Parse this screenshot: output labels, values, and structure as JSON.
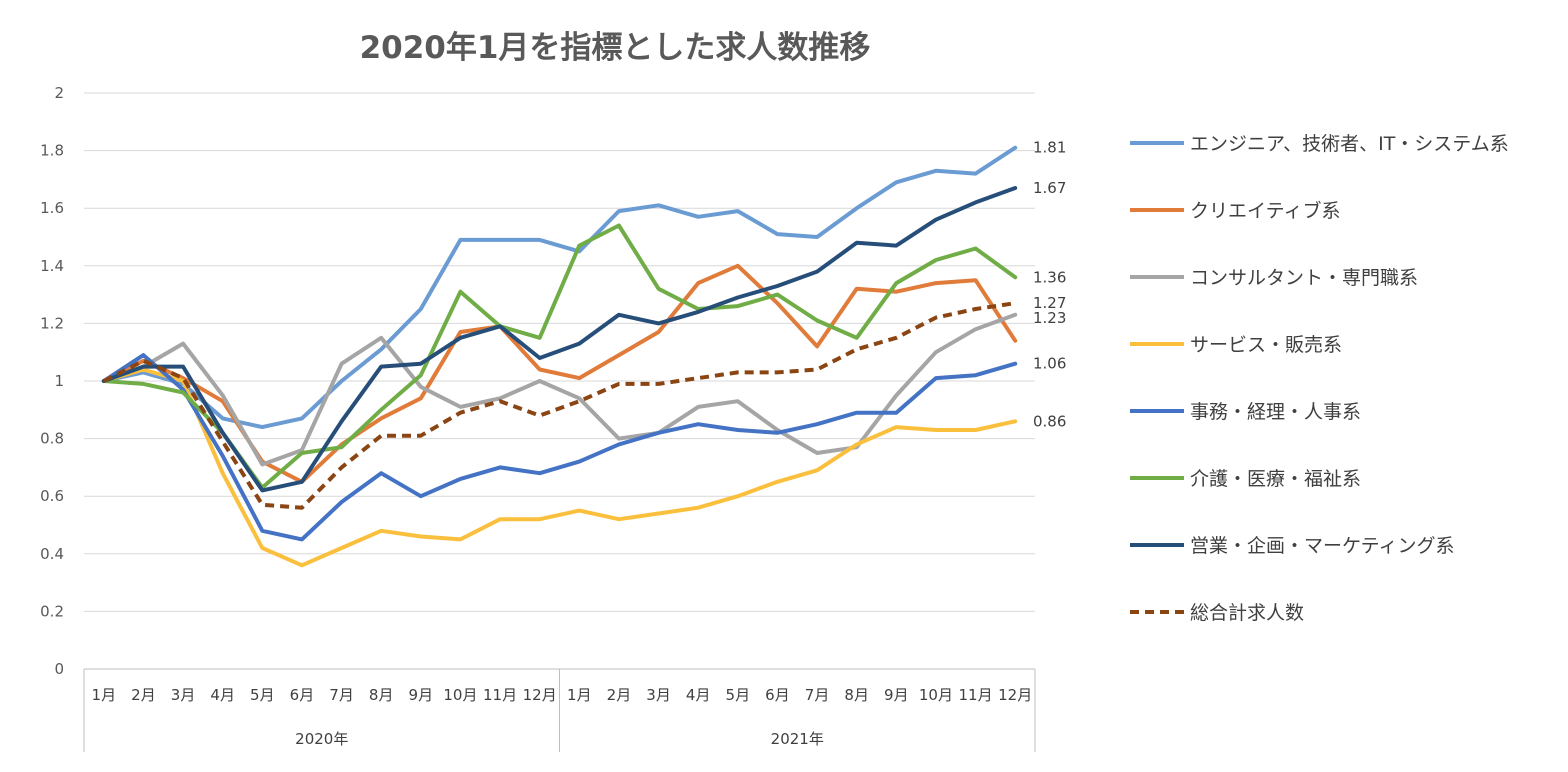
{
  "chart_data": {
    "type": "line",
    "title": "2020年1月を指標とした求人数推移",
    "xlabel": "",
    "ylabel": "",
    "ylim": [
      0,
      2
    ],
    "yticks": [
      "0",
      "0.2",
      "0.4",
      "0.6",
      "0.8",
      "1",
      "1.2",
      "1.4",
      "1.6",
      "1.8",
      "2"
    ],
    "categories": [
      "1月",
      "2月",
      "3月",
      "4月",
      "5月",
      "6月",
      "7月",
      "8月",
      "9月",
      "10月",
      "11月",
      "12月",
      "1月",
      "2月",
      "3月",
      "4月",
      "5月",
      "6月",
      "7月",
      "8月",
      "9月",
      "10月",
      "11月",
      "12月"
    ],
    "groups": [
      {
        "label": "2020年",
        "count": 12
      },
      {
        "label": "2021年",
        "count": 12
      }
    ],
    "grid": true,
    "legend_position": "right",
    "series": [
      {
        "name": "エンジニア、技術者、IT・システム系",
        "color": "#6A9BD2",
        "dashed": false,
        "end_label": "1.81",
        "values": [
          1.0,
          1.03,
          0.99,
          0.87,
          0.84,
          0.87,
          1.0,
          1.11,
          1.25,
          1.49,
          1.49,
          1.49,
          1.45,
          1.59,
          1.61,
          1.57,
          1.59,
          1.51,
          1.5,
          1.6,
          1.69,
          1.73,
          1.72,
          1.81
        ]
      },
      {
        "name": "クリエイティブ系",
        "color": "#E07B39",
        "dashed": false,
        "end_label": "",
        "values": [
          1.0,
          1.07,
          1.01,
          0.93,
          0.72,
          0.65,
          0.78,
          0.87,
          0.94,
          1.17,
          1.19,
          1.04,
          1.01,
          1.09,
          1.17,
          1.34,
          1.4,
          1.27,
          1.12,
          1.32,
          1.31,
          1.34,
          1.35,
          1.14
        ]
      },
      {
        "name": "コンサルタント・専門職系",
        "color": "#A5A5A5",
        "dashed": false,
        "end_label": "1.23",
        "values": [
          1.0,
          1.05,
          1.13,
          0.95,
          0.71,
          0.76,
          1.06,
          1.15,
          0.98,
          0.91,
          0.94,
          1.0,
          0.94,
          0.8,
          0.82,
          0.91,
          0.93,
          0.83,
          0.75,
          0.77,
          0.95,
          1.1,
          1.18,
          1.23
        ]
      },
      {
        "name": "サービス・販売系",
        "color": "#FAC03D",
        "dashed": false,
        "end_label": "0.86",
        "values": [
          1.0,
          1.04,
          1.0,
          0.68,
          0.42,
          0.36,
          0.42,
          0.48,
          0.46,
          0.45,
          0.52,
          0.52,
          0.55,
          0.52,
          0.54,
          0.56,
          0.6,
          0.65,
          0.69,
          0.78,
          0.84,
          0.83,
          0.83,
          0.86
        ]
      },
      {
        "name": "事務・経理・人事系",
        "color": "#4472C4",
        "dashed": false,
        "end_label": "1.06",
        "values": [
          1.0,
          1.09,
          0.97,
          0.74,
          0.48,
          0.45,
          0.58,
          0.68,
          0.6,
          0.66,
          0.7,
          0.68,
          0.72,
          0.78,
          0.82,
          0.85,
          0.83,
          0.82,
          0.85,
          0.89,
          0.89,
          1.01,
          1.02,
          1.06
        ]
      },
      {
        "name": "介護・医療・福祉系",
        "color": "#70AD47",
        "dashed": false,
        "end_label": "1.36",
        "values": [
          1.0,
          0.99,
          0.96,
          0.82,
          0.63,
          0.75,
          0.77,
          0.9,
          1.02,
          1.31,
          1.19,
          1.15,
          1.47,
          1.54,
          1.32,
          1.25,
          1.26,
          1.3,
          1.21,
          1.15,
          1.34,
          1.42,
          1.46,
          1.36
        ]
      },
      {
        "name": "営業・企画・マーケティング系",
        "color": "#264E79",
        "dashed": false,
        "end_label": "1.67",
        "values": [
          1.0,
          1.05,
          1.05,
          0.82,
          0.62,
          0.65,
          0.86,
          1.05,
          1.06,
          1.15,
          1.19,
          1.08,
          1.13,
          1.23,
          1.2,
          1.24,
          1.29,
          1.33,
          1.38,
          1.48,
          1.47,
          1.56,
          1.62,
          1.67
        ]
      },
      {
        "name": "総合計求人数",
        "color": "#8B4513",
        "dashed": true,
        "end_label": "1.27",
        "values": [
          1.0,
          1.07,
          1.01,
          0.79,
          0.57,
          0.56,
          0.7,
          0.81,
          0.81,
          0.89,
          0.93,
          0.88,
          0.93,
          0.99,
          0.99,
          1.01,
          1.03,
          1.03,
          1.04,
          1.11,
          1.15,
          1.22,
          1.25,
          1.27
        ]
      }
    ]
  }
}
